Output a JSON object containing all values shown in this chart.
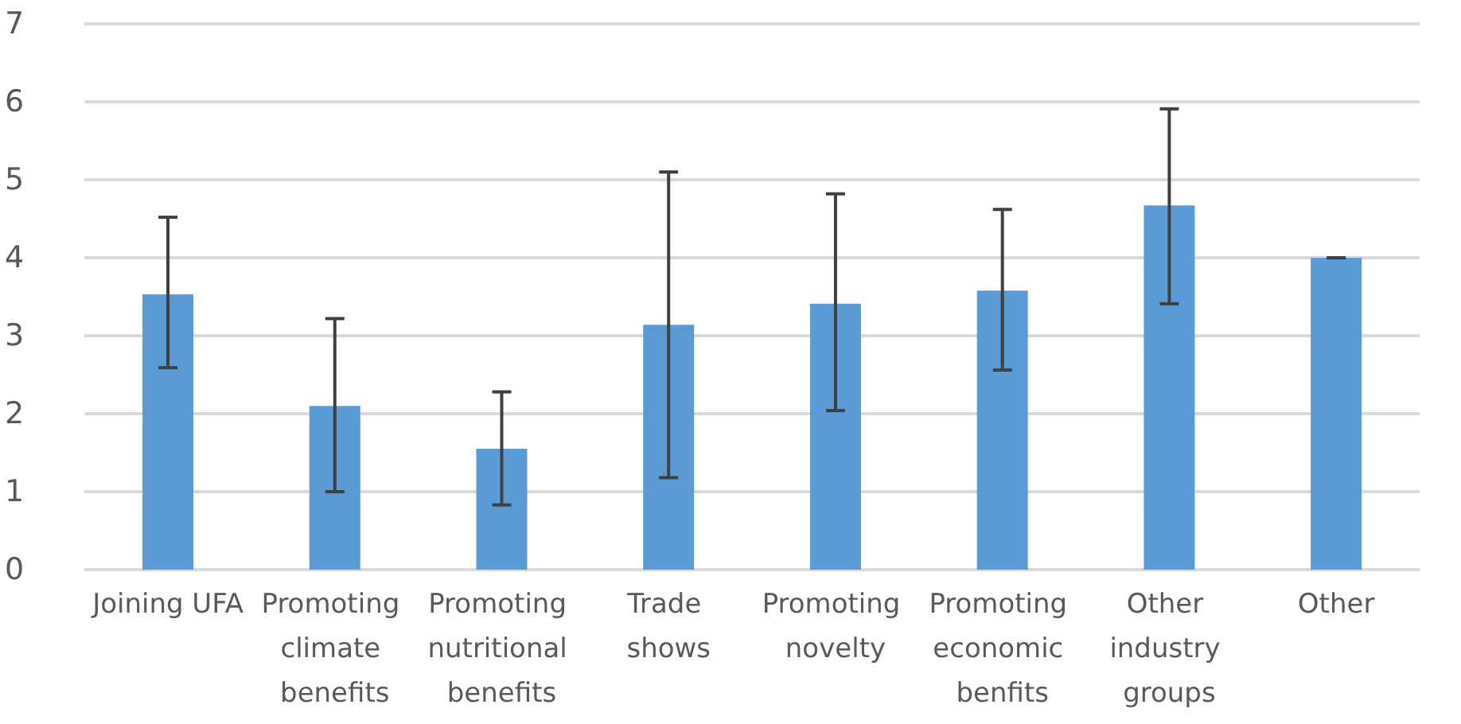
{
  "chart_data": {
    "type": "bar",
    "categories": [
      "Joining UFA",
      "Promoting climate benefits",
      "Promoting nutritional benefits",
      "Trade shows",
      "Promoting novelty",
      "Promoting economic benfits",
      "Other industry groups",
      "Other"
    ],
    "values": [
      3.53,
      2.1,
      1.55,
      3.14,
      3.41,
      3.58,
      4.67,
      4.0
    ],
    "errors": [
      [
        2.59,
        4.52
      ],
      [
        1.0,
        3.22
      ],
      [
        0.83,
        2.28
      ],
      [
        1.18,
        5.1
      ],
      [
        2.04,
        4.82
      ],
      [
        2.56,
        4.62
      ],
      [
        3.41,
        5.91
      ],
      0
    ],
    "color": "#5b9bd5",
    "ylim": [
      0,
      7
    ],
    "yticks": [
      0,
      1,
      2,
      3,
      4,
      5,
      6,
      7
    ],
    "grid": true
  }
}
